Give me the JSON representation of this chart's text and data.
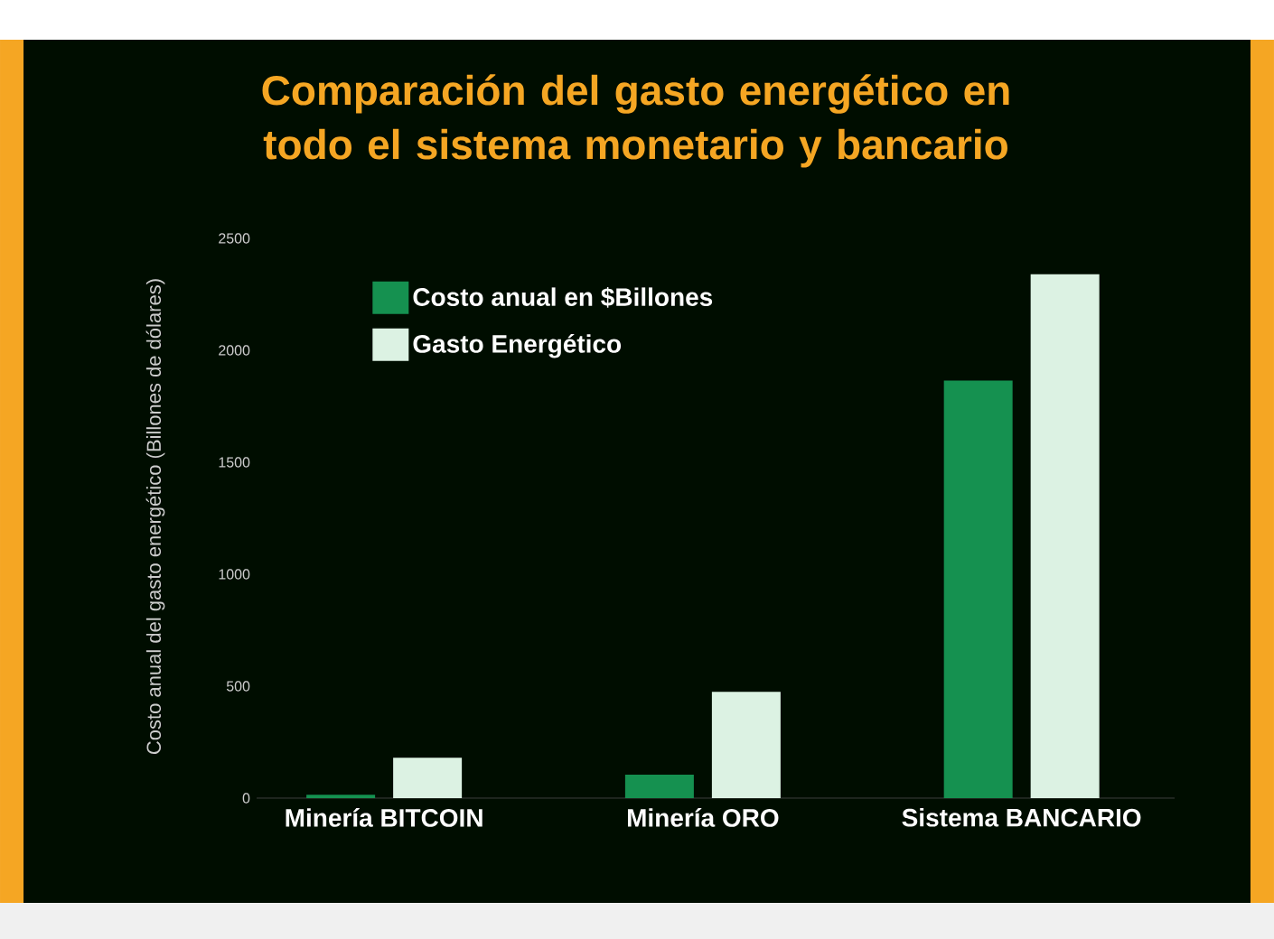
{
  "chart_data": {
    "type": "bar",
    "title": "Comparación del gasto energético en todo el sistema monetario y bancario",
    "ylabel": "Costo anual del gasto energético (Billones de dólares)",
    "categories": [
      "Minería BITCOIN",
      "Minería ORO",
      "Sistema BANCARIO"
    ],
    "series": [
      {
        "name": "Costo anual en $Billones",
        "color": "#159150",
        "values": [
          15,
          105,
          1865
        ]
      },
      {
        "name": "Gasto Energético",
        "color": "#dcf2e3",
        "values": [
          180,
          475,
          2340
        ]
      }
    ],
    "ylim": [
      0,
      2500
    ],
    "yticks": [
      0,
      500,
      1000,
      1500,
      2000,
      2500
    ],
    "legend": "top left"
  }
}
